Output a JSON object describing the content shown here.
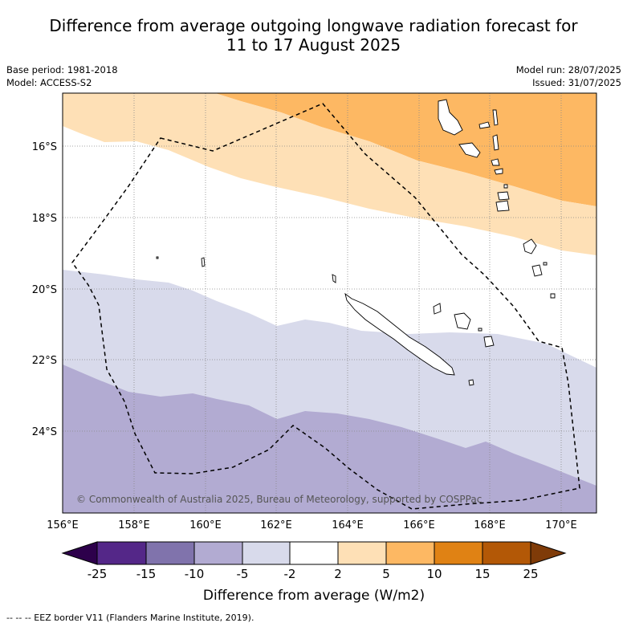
{
  "title": {
    "line1": "Difference from average outgoing longwave radiation forecast for",
    "line2": "11 to 17 August 2025"
  },
  "meta": {
    "base_period": "Base period: 1981-2018",
    "model": "Model: ACCESS-S2",
    "model_run": "Model run: 28/07/2025",
    "issued": "Issued: 31/07/2025"
  },
  "map": {
    "lon_range": [
      156,
      171
    ],
    "lat_range": [
      -26.2,
      -14.6
    ],
    "lon_ticks": [
      "156°E",
      "158°E",
      "160°E",
      "162°E",
      "164°E",
      "166°E",
      "168°E",
      "170°E"
    ],
    "lat_ticks": [
      "16°S",
      "18°S",
      "20°S",
      "22°S",
      "24°S"
    ],
    "copyright": "© Commonwealth of Australia 2025, Bureau of Meteorology, supported by COSPPac",
    "colors": {
      "pos_5_10": "#fdb863",
      "pos_2_5": "#fee0b6",
      "neutral": "#ffffff",
      "neg_5_2": "#d8daeb",
      "neg_10_5": "#b2abd2"
    }
  },
  "colorbar": {
    "label": "Difference from average (W/m2)",
    "ticks": [
      "-25",
      "-15",
      "-10",
      "-5",
      "-2",
      "2",
      "5",
      "10",
      "15",
      "25"
    ],
    "colors": [
      "#2d004b",
      "#542788",
      "#8073ac",
      "#b2abd2",
      "#d8daeb",
      "#ffffff",
      "#fee0b6",
      "#fdb863",
      "#e08214",
      "#b35806",
      "#7f3b08"
    ]
  },
  "footnote": "--  --  -- EEZ border V11 (Flanders Marine Institute, 2019)."
}
